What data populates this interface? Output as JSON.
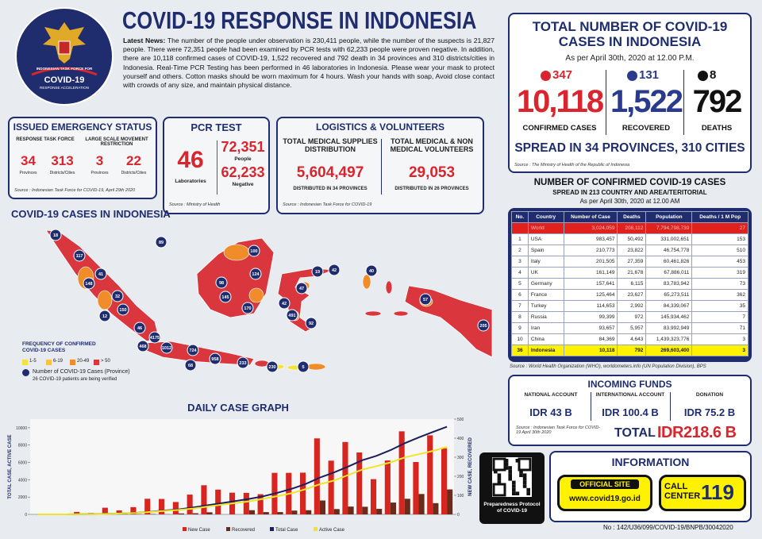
{
  "logo": {
    "line1": "INDONESIAN TASK FORCE FOR",
    "line2": "COVID-19",
    "line3": "RESPONSE ACCELERATION"
  },
  "header": {
    "title": "COVID-19 RESPONSE IN INDONESIA",
    "news_label": "Latest News:",
    "news": "The number of the people under observation is 230,411 people, while the number of the suspects is 21,827 people. There were 72,351 people had been examined by PCR tests with 62,233 people were proven negative. In addition, there are 10,118 confirmed cases of COVID-19, 1,522 recovered and 792 death in 34 provinces and 310 districts/cities in Indonesia. Real-Time PCR Testing has been performed in 46 laboratories in Indonesia. Please wear your mask to protect yourself and others. Cotton masks should be worn maximum for 4 hours. Wash your hands with soap, Avoid close contact with crowds of any size, and maintain physical distance."
  },
  "emergency": {
    "title": "ISSUED EMERGENCY STATUS",
    "groups": [
      {
        "label": "RESPONSE TASK FORCE",
        "items": [
          {
            "value": "34",
            "label": "Provinces"
          },
          {
            "value": "313",
            "label": "Districts/Cities"
          }
        ]
      },
      {
        "label": "LARGE SCALE MOVEMENT RESTRICTION",
        "items": [
          {
            "value": "3",
            "label": "Provinces"
          },
          {
            "value": "22",
            "label": "Districts/Cities"
          }
        ]
      }
    ],
    "source": "Source : Indonesian Task Force for COVID-19, April 29th 2020"
  },
  "pcr": {
    "title": "PCR TEST",
    "labs": "46",
    "labs_label": "Laboratories",
    "people": "72,351",
    "people_label": "People",
    "negative": "62,233",
    "negative_label": "Negative",
    "source": "Source : Ministry of Health"
  },
  "logistics": {
    "title": "LOGISTICS & VOLUNTEERS",
    "columns": [
      {
        "label": "TOTAL MEDICAL SUPPLIES DISTRIBUTION",
        "value": "5,604,497",
        "note": "DISTRIBUTED IN 34 PROVINCES"
      },
      {
        "label": "TOTAL MEDICAL & NON MEDICAL VOLUNTEERS",
        "value": "29,053",
        "note": "DISTRIBUTED IN 26 PROVINCES"
      }
    ],
    "source": "Source : Indonesian Task Force for COVID-19"
  },
  "map": {
    "title": "COVID-19 CASES IN INDONESIA",
    "legend_title": "FREQUENCY OF CONFIRMED COVID-19 CASES",
    "legend": [
      {
        "label": "1-5",
        "color": "#f2e43a"
      },
      {
        "label": "6-19",
        "color": "#f7c341"
      },
      {
        "label": "20-49",
        "color": "#f08c2a"
      },
      {
        "label": "> 50",
        "color": "#d9363e"
      }
    ],
    "marker_note": "Number of COVID-19 Cases (Province)",
    "verify_note": "26 COVID-19 patients are being verified",
    "markers": [
      18,
      117,
      41,
      148,
      32,
      12,
      150,
      46,
      4175,
      468,
      1012,
      724,
      68,
      958,
      233,
      230,
      5,
      89,
      100,
      124,
      98,
      145,
      170,
      42,
      491,
      47,
      19,
      42,
      40,
      57,
      205,
      92
    ]
  },
  "totals": {
    "title": "TOTAL NUMBER OF COVID-19 CASES IN INDONESIA",
    "subtitle": "As per April 30th, 2020 at 12.00 P.M.",
    "stats": [
      {
        "new": "347",
        "total": "10,118",
        "label": "CONFIRMED CASES",
        "color": "#d9262e"
      },
      {
        "new": "131",
        "total": "1,522",
        "label": "RECOVERED",
        "color": "#2a3a8c"
      },
      {
        "new": "8",
        "total": "792",
        "label": "DEATHS",
        "color": "#111111"
      }
    ],
    "spread": "SPREAD IN 34 PROVINCES, 310 CITIES",
    "source": "Source : The Ministry of Health of the Republic of Indonesia"
  },
  "world_table": {
    "title": "NUMBER OF CONFIRMED COVID-19 CASES",
    "subtitle": "SPREAD IN 213 COUNTRY AND AREA/TERITORIAL",
    "date": "As per April 30th, 2020 at 12.00 AM",
    "headers": [
      "No.",
      "Country",
      "Number of Case",
      "Deaths",
      "Population",
      "Deaths / 1 M Pop"
    ],
    "rows": [
      [
        null,
        "World",
        "3,024,059",
        "208,112",
        "7,794,798,739",
        "27"
      ],
      [
        "1",
        "USA",
        "983,457",
        "50,492",
        "331,002,651",
        "153"
      ],
      [
        "2",
        "Spain",
        "210,773",
        "23,822",
        "46,754,778",
        "510"
      ],
      [
        "3",
        "Italy",
        "201,505",
        "27,359",
        "60,461,826",
        "453"
      ],
      [
        "4",
        "UK",
        "161,149",
        "21,678",
        "67,886,011",
        "319"
      ],
      [
        "5",
        "Germany",
        "157,641",
        "6,115",
        "83,783,942",
        "73"
      ],
      [
        "6",
        "France",
        "125,464",
        "23,627",
        "65,273,511",
        "362"
      ],
      [
        "7",
        "Turkey",
        "114,653",
        "2,992",
        "84,339,067",
        "35"
      ],
      [
        "8",
        "Russia",
        "99,399",
        "972",
        "145,934,462",
        "7"
      ],
      [
        "9",
        "Iran",
        "93,657",
        "5,957",
        "83,992,949",
        "71"
      ],
      [
        "10",
        "China",
        "84,369",
        "4,643",
        "1,439,323,776",
        "3"
      ],
      [
        "36",
        "Indonesia",
        "10,118",
        "792",
        "269,603,400",
        "3"
      ]
    ],
    "source": "Source : World Health Organization (WHO), worldometers.info (UN Population Division), BPS"
  },
  "funds": {
    "title": "INCOMING FUNDS",
    "items": [
      {
        "label": "NATIONAL ACCOUNT",
        "value": "IDR 43 B"
      },
      {
        "label": "INTERNATIONAL ACCOUNT",
        "value": "IDR 100.4 B"
      },
      {
        "label": "DONATION",
        "value": "IDR 75.2 B"
      }
    ],
    "source": "Source : Indonesian Task Force for COVID-19 April 30th 2020",
    "total_label": "TOTAL",
    "total": "IDR218.6 B"
  },
  "info": {
    "qr_caption": "Preparedness Protocol of COVID-19",
    "title": "INFORMATION",
    "site_label": "OFFICIAL SITE",
    "site": "www.covid19.go.id",
    "call_label": "CALL CENTER",
    "call": "119"
  },
  "footer": "No : 142/U36/099/COVID-19/BNPB/30042020",
  "chart_data": {
    "type": "combo",
    "title": "DAILY CASE GRAPH",
    "y_label": "TOTAL CASE, ACTIVE CASE",
    "y2_label": "NEW CASE, RECOVERED",
    "categories": [
      null,
      null,
      null,
      null,
      null,
      null,
      null,
      null,
      null,
      null,
      null,
      null,
      null,
      null,
      null,
      null,
      null,
      null,
      null,
      null,
      null,
      null,
      null,
      null,
      null,
      null,
      null,
      null,
      null,
      null
    ],
    "ylim": [
      0,
      11000
    ],
    "yticks": [
      0,
      2000,
      4000,
      6000,
      8000,
      10000
    ],
    "y2lim": [
      0,
      500
    ],
    "y2ticks": [
      0,
      100,
      200,
      300,
      400,
      500
    ],
    "series": [
      {
        "name": "New Case",
        "color": "#d7261f",
        "kind": "bar",
        "axis": "y2",
        "values": [
          0,
          0,
          0,
          13,
          7,
          35,
          21,
          38,
          82,
          81,
          65,
          104,
          153,
          130,
          114,
          113,
          106,
          218,
          218,
          219,
          399,
          282,
          380,
          325,
          185,
          283,
          436,
          275,
          415,
          347
        ]
      },
      {
        "name": "Recovered",
        "color": "#6b2b1a",
        "kind": "bar",
        "axis": "y2",
        "values": [
          0,
          0,
          0,
          0,
          0,
          3,
          2,
          1,
          2,
          1,
          5,
          6,
          11,
          0,
          0,
          22,
          12,
          12,
          20,
          22,
          73,
          28,
          41,
          40,
          29,
          62,
          82,
          107,
          59,
          131
        ]
      },
      {
        "name": "Total Case",
        "color": "#1b1f5c",
        "kind": "line",
        "values": [
          2,
          2,
          4,
          19,
          34,
          69,
          117,
          172,
          309,
          450,
          579,
          790,
          1046,
          1285,
          1528,
          1790,
          2092,
          2491,
          2956,
          3512,
          4241,
          4839,
          5516,
          6248,
          6760,
          7418,
          8211,
          8882,
          9511,
          10118
        ]
      },
      {
        "name": "Active Case",
        "color": "#f0e52b",
        "kind": "line",
        "values": [
          2,
          2,
          4,
          19,
          30,
          59,
          106,
          155,
          282,
          400,
          510,
          660,
          893,
          1107,
          1306,
          1506,
          1795,
          2108,
          2435,
          2919,
          3486,
          3903,
          4535,
          5172,
          5563,
          6002,
          6569,
          6947,
          7327,
          7804
        ]
      }
    ]
  }
}
